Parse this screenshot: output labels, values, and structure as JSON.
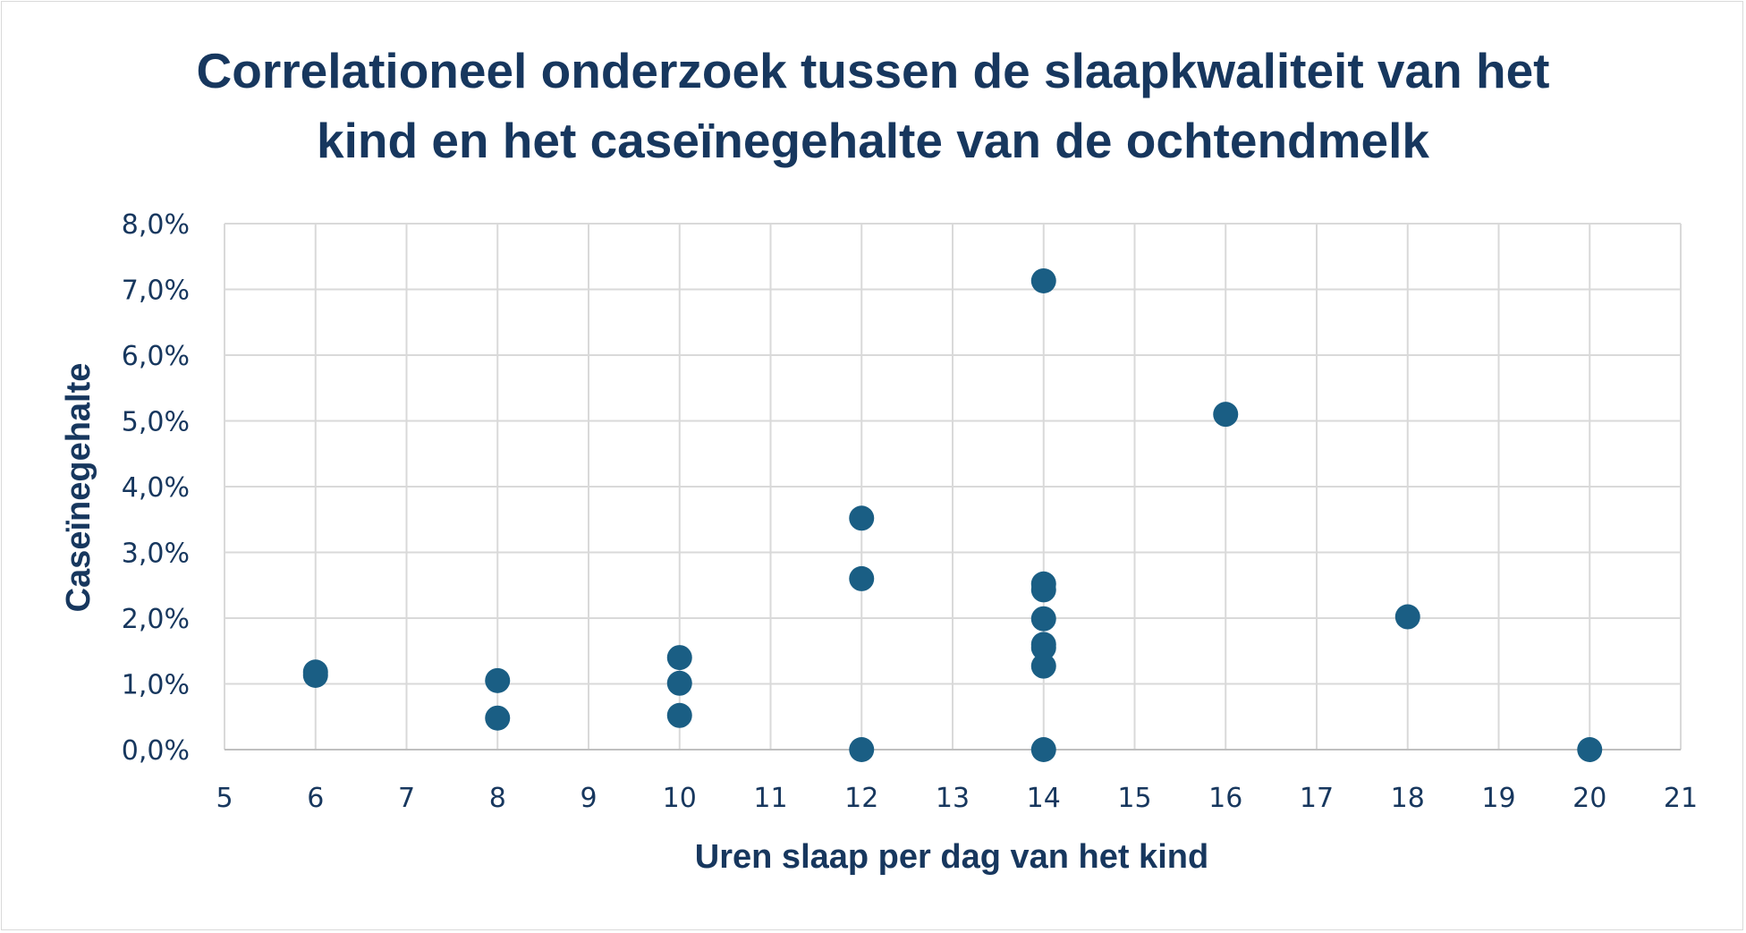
{
  "chart_data": {
    "type": "scatter",
    "title_lines": [
      "Correlationeel onderzoek tussen de slaapkwaliteit van het",
      "kind en het caseïnegehalte van de ochtendmelk"
    ],
    "xlabel": "Uren slaap per dag van het kind",
    "ylabel": "Caseïnegehalte",
    "xlim": [
      5,
      21
    ],
    "ylim": [
      0,
      0.08
    ],
    "x_ticks": [
      "5",
      "6",
      "7",
      "8",
      "9",
      "10",
      "11",
      "12",
      "13",
      "14",
      "15",
      "16",
      "17",
      "18",
      "19",
      "20",
      "21"
    ],
    "y_ticks": [
      "0,0%",
      "1,0%",
      "2,0%",
      "3,0%",
      "4,0%",
      "5,0%",
      "6,0%",
      "7,0%",
      "8,0%"
    ],
    "grid": true,
    "marker_color": "#1a5e84",
    "points": [
      {
        "x": 6,
        "y": 0.0118
      },
      {
        "x": 6,
        "y": 0.0113
      },
      {
        "x": 8,
        "y": 0.0105
      },
      {
        "x": 8,
        "y": 0.0048
      },
      {
        "x": 10,
        "y": 0.014
      },
      {
        "x": 10,
        "y": 0.0101
      },
      {
        "x": 10,
        "y": 0.0052
      },
      {
        "x": 12,
        "y": 0.0352
      },
      {
        "x": 12,
        "y": 0.026
      },
      {
        "x": 12,
        "y": 0.0
      },
      {
        "x": 14,
        "y": 0.0713
      },
      {
        "x": 14,
        "y": 0.0252
      },
      {
        "x": 14,
        "y": 0.0243
      },
      {
        "x": 14,
        "y": 0.0199
      },
      {
        "x": 14,
        "y": 0.016
      },
      {
        "x": 14,
        "y": 0.0155
      },
      {
        "x": 14,
        "y": 0.0127
      },
      {
        "x": 14,
        "y": 0.0
      },
      {
        "x": 16,
        "y": 0.051
      },
      {
        "x": 18,
        "y": 0.0202
      },
      {
        "x": 20,
        "y": 0.0
      }
    ]
  }
}
